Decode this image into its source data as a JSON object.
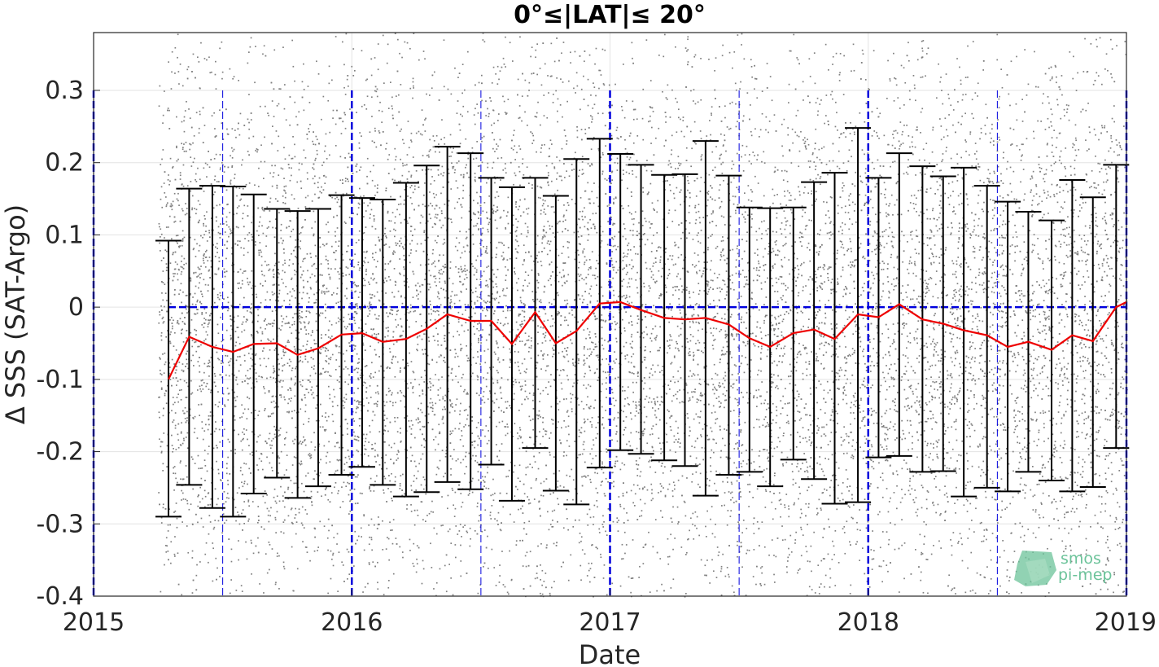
{
  "chart_data": {
    "type": "scatter",
    "title": "0°≤|LAT|≤ 20°",
    "xlabel": "Date",
    "ylabel": "Δ SSS (SAT-Argo)",
    "xlim": [
      2015.0,
      2019.0
    ],
    "ylim": [
      -0.4,
      0.38
    ],
    "xticks": [
      2015,
      2016,
      2017,
      2018,
      2019
    ],
    "xtick_labels": [
      "2015",
      "2016",
      "2017",
      "2018",
      "2019"
    ],
    "yticks": [
      -0.4,
      -0.3,
      -0.2,
      -0.1,
      0,
      0.1,
      0.2,
      0.3
    ],
    "ytick_labels": [
      "-0.4",
      "-0.3",
      "-0.2",
      "-0.1",
      "0",
      "0.1",
      "0.2",
      "0.3"
    ],
    "grid": true,
    "scatter_points": {
      "name": "",
      "color": "#808080",
      "x_range": [
        2015.25,
        2019.0
      ],
      "y_mean": -0.03,
      "y_std": 0.2
    },
    "zero_line": {
      "y": 0,
      "x_start": 2015.29,
      "color": "#0000dd"
    },
    "vertical_lines": {
      "color": "#0000dd",
      "years": [
        2015.0,
        2016.0,
        2017.0,
        2018.0,
        2019.0
      ],
      "half_years": [
        2015.5,
        2016.5,
        2017.5,
        2018.5
      ]
    },
    "series": [
      {
        "name": "",
        "type": "errorbar",
        "color": "#000000",
        "x": [
          2015.29,
          2015.37,
          2015.46,
          2015.54,
          2015.62,
          2015.71,
          2015.79,
          2015.87,
          2015.96,
          2016.04,
          2016.12,
          2016.21,
          2016.29,
          2016.37,
          2016.46,
          2016.54,
          2016.62,
          2016.71,
          2016.79,
          2016.87,
          2016.96,
          2017.04,
          2017.12,
          2017.21,
          2017.29,
          2017.37,
          2017.46,
          2017.54,
          2017.62,
          2017.71,
          2017.79,
          2017.87,
          2017.96,
          2018.04,
          2018.12,
          2018.21,
          2018.29,
          2018.37,
          2018.46,
          2018.54,
          2018.62,
          2018.71,
          2018.79,
          2018.87,
          2018.96
        ],
        "upper": [
          0.092,
          0.164,
          0.168,
          0.167,
          0.156,
          0.136,
          0.133,
          0.136,
          0.155,
          0.151,
          0.149,
          0.172,
          0.196,
          0.222,
          0.213,
          0.179,
          0.166,
          0.179,
          0.154,
          0.205,
          0.233,
          0.212,
          0.197,
          0.183,
          0.184,
          0.23,
          0.182,
          0.138,
          0.137,
          0.138,
          0.173,
          0.186,
          0.248,
          0.179,
          0.213,
          0.195,
          0.181,
          0.193,
          0.168,
          0.146,
          0.132,
          0.12,
          0.176,
          0.152,
          0.197
        ],
        "lower": [
          -0.29,
          -0.246,
          -0.278,
          -0.29,
          -0.258,
          -0.236,
          -0.264,
          -0.248,
          -0.232,
          -0.221,
          -0.246,
          -0.262,
          -0.256,
          -0.242,
          -0.252,
          -0.218,
          -0.268,
          -0.195,
          -0.254,
          -0.273,
          -0.222,
          -0.198,
          -0.203,
          -0.212,
          -0.22,
          -0.261,
          -0.232,
          -0.228,
          -0.248,
          -0.211,
          -0.238,
          -0.272,
          -0.27,
          -0.208,
          -0.206,
          -0.228,
          -0.227,
          -0.262,
          -0.25,
          -0.255,
          -0.228,
          -0.24,
          -0.255,
          -0.249,
          -0.195
        ]
      },
      {
        "name": "",
        "type": "line",
        "color": "#ee0000",
        "x": [
          2015.29,
          2015.37,
          2015.46,
          2015.54,
          2015.62,
          2015.71,
          2015.79,
          2015.87,
          2015.96,
          2016.04,
          2016.12,
          2016.21,
          2016.29,
          2016.37,
          2016.46,
          2016.54,
          2016.62,
          2016.71,
          2016.79,
          2016.87,
          2016.96,
          2017.04,
          2017.12,
          2017.21,
          2017.29,
          2017.37,
          2017.46,
          2017.54,
          2017.62,
          2017.71,
          2017.79,
          2017.87,
          2017.96,
          2018.04,
          2018.12,
          2018.21,
          2018.29,
          2018.37,
          2018.46,
          2018.54,
          2018.62,
          2018.71,
          2018.79,
          2018.87,
          2018.96,
          2019.0
        ],
        "values": [
          -0.1,
          -0.041,
          -0.055,
          -0.062,
          -0.051,
          -0.05,
          -0.066,
          -0.057,
          -0.038,
          -0.036,
          -0.048,
          -0.044,
          -0.03,
          -0.01,
          -0.019,
          -0.019,
          -0.051,
          -0.007,
          -0.05,
          -0.033,
          0.005,
          0.007,
          -0.004,
          -0.015,
          -0.017,
          -0.015,
          -0.024,
          -0.043,
          -0.055,
          -0.036,
          -0.031,
          -0.044,
          -0.01,
          -0.014,
          0.004,
          -0.017,
          -0.023,
          -0.032,
          -0.039,
          -0.055,
          -0.048,
          -0.059,
          -0.039,
          -0.047,
          0.0,
          0.007
        ]
      }
    ]
  },
  "logo": {
    "line1": "smos",
    "line2": "pi-mep"
  }
}
